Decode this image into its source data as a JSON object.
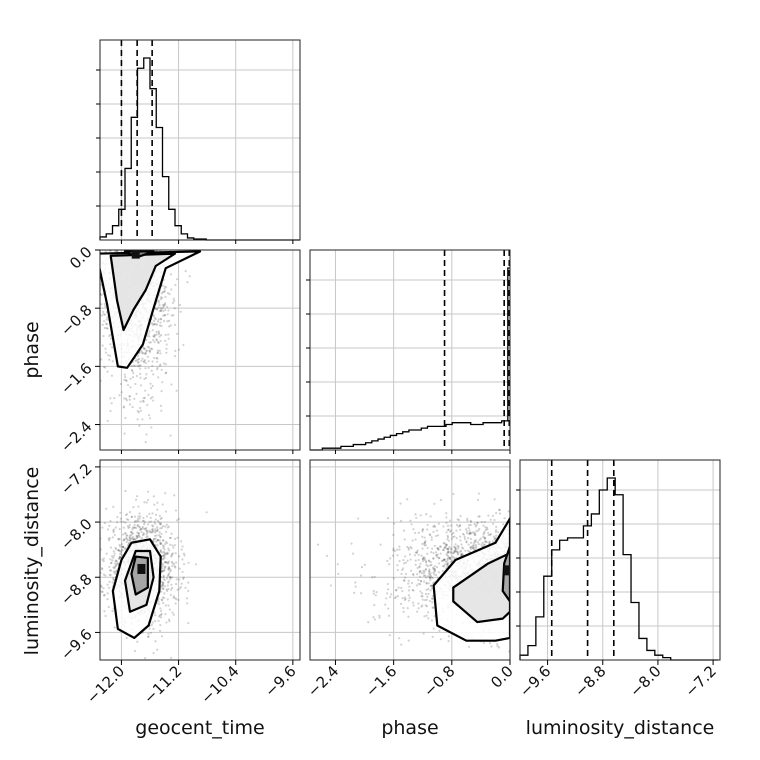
{
  "chart_data": {
    "type": "corner",
    "parameters": [
      "geocent_time",
      "phase",
      "luminosity_distance"
    ],
    "axis_labels": {
      "geocent_time": "geocent_time",
      "phase": "phase",
      "luminosity_distance": "luminosity_distance"
    },
    "ranges": {
      "geocent_time": [
        -12.3,
        -9.5
      ],
      "phase": [
        -2.75,
        0.0
      ],
      "luminosity_distance": [
        -10.0,
        -7.1
      ]
    },
    "ticks": {
      "geocent_time": [
        "-12.0",
        "-11.2",
        "-10.4",
        "-9.6"
      ],
      "phase": [
        "-2.4",
        "-1.6",
        "-0.8",
        "0.0"
      ],
      "luminosity_distance": [
        "-9.6",
        "-8.8",
        "-8.0",
        "-7.2"
      ]
    },
    "tick_values": {
      "geocent_time": [
        -12.0,
        -11.2,
        -10.4,
        -9.6
      ],
      "phase": [
        -2.4,
        -1.6,
        -0.8,
        0.0
      ],
      "luminosity_distance": [
        -9.6,
        -8.8,
        -8.0,
        -7.2
      ]
    },
    "quantiles": {
      "geocent_time": [
        -12.0,
        -11.78,
        -11.57
      ],
      "phase": [
        -0.9,
        -0.08,
        -0.01
      ],
      "luminosity_distance": [
        -9.54,
        -9.02,
        -8.64
      ]
    },
    "histograms": {
      "geocent_time": {
        "edges_start": -12.3,
        "edges_step": 0.0875,
        "counts": [
          3,
          6,
          14,
          30,
          70,
          120,
          168,
          178,
          148,
          110,
          62,
          30,
          14,
          6,
          2,
          1,
          1,
          0,
          0,
          0,
          0,
          0,
          0,
          0,
          0,
          0,
          0,
          0,
          0,
          0,
          0,
          0
        ]
      },
      "phase": {
        "edges_start": -2.75,
        "edges_step": 0.085,
        "counts": [
          0,
          0,
          1,
          1,
          1,
          2,
          2,
          3,
          3,
          4,
          5,
          6,
          7,
          8,
          9,
          10,
          11,
          11,
          12,
          13,
          13,
          13,
          14,
          15,
          15,
          15,
          14,
          14,
          15,
          15,
          15,
          16,
          100
        ]
      },
      "luminosity_distance": {
        "edges_start": -10.0,
        "edges_step": 0.115,
        "counts": [
          2,
          6,
          18,
          35,
          46,
          50,
          51,
          51,
          56,
          61,
          71,
          76,
          69,
          44,
          24,
          9,
          4,
          2,
          1,
          0,
          0,
          0,
          0,
          0,
          0
        ]
      }
    },
    "pairs": [
      {
        "x": "geocent_time",
        "y": "phase",
        "peak": [
          -11.8,
          -0.05
        ],
        "levels": [
          [
            [
              -12.35,
              -0.05
            ],
            [
              -12.2,
              -0.75
            ],
            [
              -12.05,
              -1.6
            ],
            [
              -11.92,
              -1.62
            ],
            [
              -11.7,
              -1.3
            ],
            [
              -11.55,
              -0.8
            ],
            [
              -11.38,
              -0.25
            ],
            [
              -10.9,
              -0.02
            ]
          ],
          [
            [
              -12.15,
              -0.08
            ],
            [
              -12.06,
              -0.7
            ],
            [
              -11.97,
              -1.1
            ],
            [
              -11.83,
              -0.82
            ],
            [
              -11.66,
              -0.55
            ],
            [
              -11.52,
              -0.22
            ],
            [
              -11.25,
              -0.05
            ]
          ],
          [
            [
              -11.95,
              -0.02
            ],
            [
              -11.78,
              -0.1
            ],
            [
              -11.55,
              -0.02
            ]
          ]
        ]
      },
      {
        "x": "geocent_time",
        "y": "luminosity_distance",
        "peak": [
          -11.72,
          -8.68
        ],
        "levels": [
          [
            [
              -11.86,
              -8.3
            ],
            [
              -11.6,
              -8.25
            ],
            [
              -11.45,
              -8.5
            ],
            [
              -11.47,
              -9.0
            ],
            [
              -11.62,
              -9.5
            ],
            [
              -11.82,
              -9.68
            ],
            [
              -12.05,
              -9.55
            ],
            [
              -12.12,
              -9.0
            ],
            [
              -12.0,
              -8.55
            ]
          ],
          [
            [
              -11.8,
              -8.42
            ],
            [
              -11.6,
              -8.42
            ],
            [
              -11.55,
              -8.8
            ],
            [
              -11.65,
              -9.2
            ],
            [
              -11.88,
              -9.3
            ],
            [
              -11.95,
              -8.85
            ]
          ],
          [
            [
              -11.8,
              -8.5
            ],
            [
              -11.63,
              -8.52
            ],
            [
              -11.63,
              -8.95
            ],
            [
              -11.8,
              -9.05
            ],
            [
              -11.86,
              -8.75
            ]
          ]
        ]
      },
      {
        "x": "phase",
        "y": "luminosity_distance",
        "peak": [
          -0.03,
          -8.7
        ],
        "levels": [
          [
            [
              0.0,
              -7.95
            ],
            [
              -0.2,
              -8.3
            ],
            [
              -0.75,
              -8.55
            ],
            [
              -1.05,
              -8.92
            ],
            [
              -1.0,
              -9.5
            ],
            [
              -0.6,
              -9.72
            ],
            [
              -0.2,
              -9.72
            ],
            [
              0.0,
              -9.68
            ]
          ],
          [
            [
              0.0,
              -8.45
            ],
            [
              -0.3,
              -8.6
            ],
            [
              -0.78,
              -8.95
            ],
            [
              -0.78,
              -9.15
            ],
            [
              -0.45,
              -9.45
            ],
            [
              -0.1,
              -9.4
            ],
            [
              0.0,
              -9.3
            ]
          ],
          [
            [
              0.0,
              -8.35
            ],
            [
              -0.08,
              -8.6
            ],
            [
              -0.1,
              -9.0
            ],
            [
              0.0,
              -9.15
            ]
          ]
        ]
      }
    ]
  }
}
